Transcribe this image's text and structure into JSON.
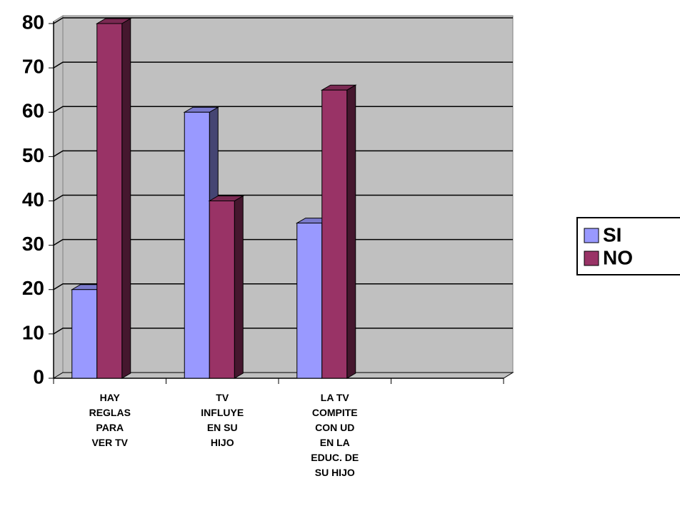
{
  "chart_data": {
    "type": "bar3d",
    "categories": [
      "HAY REGLAS PARA VER TV",
      "TV INFLUYE EN SU HIJO",
      "LA TV COMPITE CON UD EN LA EDUC. DE SU HIJO",
      null
    ],
    "series": [
      {
        "name": "SI",
        "color": "#9999ff",
        "values": [
          20,
          60,
          35,
          null
        ]
      },
      {
        "name": "NO",
        "color": "#993366",
        "values": [
          80,
          40,
          65,
          null
        ]
      }
    ],
    "ylim": [
      0,
      80
    ],
    "yticks": [
      0,
      10,
      20,
      30,
      40,
      50,
      60,
      70,
      80
    ],
    "grid": true,
    "legend": "right"
  }
}
